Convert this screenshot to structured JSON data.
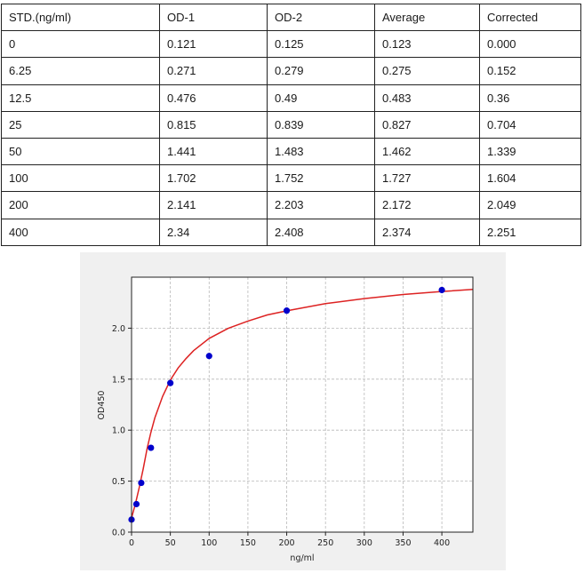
{
  "table": {
    "headers": [
      "STD.(ng/ml)",
      "OD-1",
      "OD-2",
      "Average",
      "Corrected"
    ],
    "rows": [
      [
        "0",
        "0.121",
        "0.125",
        "0.123",
        "0.000"
      ],
      [
        "6.25",
        "0.271",
        "0.279",
        "0.275",
        "0.152"
      ],
      [
        "12.5",
        "0.476",
        "0.49",
        "0.483",
        "0.36"
      ],
      [
        "25",
        "0.815",
        "0.839",
        "0.827",
        "0.704"
      ],
      [
        "50",
        "1.441",
        "1.483",
        "1.462",
        "1.339"
      ],
      [
        "100",
        "1.702",
        "1.752",
        "1.727",
        "1.604"
      ],
      [
        "200",
        "2.141",
        "2.203",
        "2.172",
        "2.049"
      ],
      [
        "400",
        "2.34",
        "2.408",
        "2.374",
        "2.251"
      ]
    ]
  },
  "chart_data": {
    "type": "scatter",
    "title": "",
    "xlabel": "ng/ml",
    "ylabel": "OD450",
    "xlim": [
      0,
      440
    ],
    "ylim": [
      0,
      2.5
    ],
    "xticks": [
      0,
      50,
      100,
      150,
      200,
      250,
      300,
      350,
      400
    ],
    "yticks": [
      0.0,
      0.5,
      1.0,
      1.5,
      2.0
    ],
    "ytick_labels": [
      "0.0",
      "0.5",
      "1.0",
      "1.5",
      "2.0"
    ],
    "grid": true,
    "points": {
      "x": [
        0,
        6.25,
        12.5,
        25,
        50,
        100,
        200,
        400
      ],
      "y": [
        0.123,
        0.275,
        0.483,
        0.827,
        1.462,
        1.727,
        2.172,
        2.374
      ],
      "color": "#0000cc"
    },
    "fit_curve": {
      "color": "#dd2222",
      "x": [
        0,
        5,
        10,
        15,
        20,
        25,
        30,
        40,
        50,
        60,
        70,
        80,
        100,
        125,
        150,
        175,
        200,
        250,
        300,
        350,
        400,
        440
      ],
      "y": [
        0.14,
        0.28,
        0.44,
        0.62,
        0.82,
        0.98,
        1.12,
        1.33,
        1.49,
        1.61,
        1.7,
        1.78,
        1.9,
        2.0,
        2.07,
        2.13,
        2.17,
        2.24,
        2.29,
        2.33,
        2.36,
        2.38
      ]
    }
  }
}
